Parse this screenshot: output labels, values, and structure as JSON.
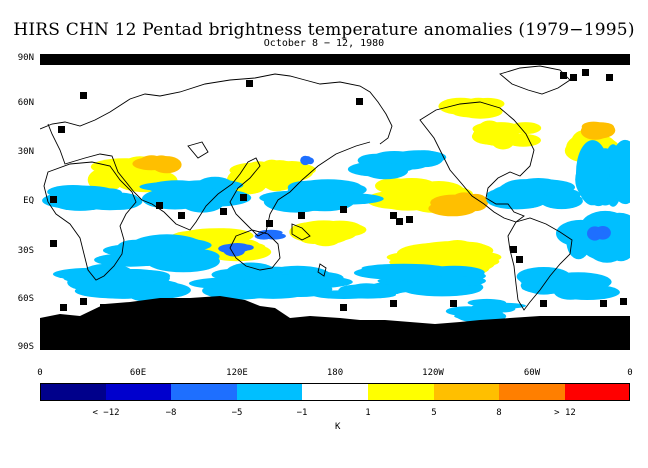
{
  "title": "HIRS CHN 12 Pentad brightness temperature anomalies (1979−1995)",
  "subtitle": "October 8 − 12, 1980",
  "map": {
    "lat_labels": [
      "90N",
      "60N",
      "30N",
      "EQ",
      "30S",
      "60S",
      "90S"
    ],
    "lon_labels": [
      "0",
      "60E",
      "120E",
      "180",
      "120W",
      "60W",
      "0"
    ]
  },
  "colorbar": {
    "colors": [
      "#00008b",
      "#0000cd",
      "#1e6fff",
      "#00bfff",
      "#ffffff",
      "#ffff00",
      "#ffbf00",
      "#ff7f00",
      "#ff0000"
    ],
    "labels": [
      "< −12",
      "−8",
      "−5",
      "−1",
      "1",
      "5",
      "8",
      "> 12"
    ],
    "unit": "K"
  },
  "colors": {
    "missing": "#000000",
    "coastline": "#000000"
  }
}
